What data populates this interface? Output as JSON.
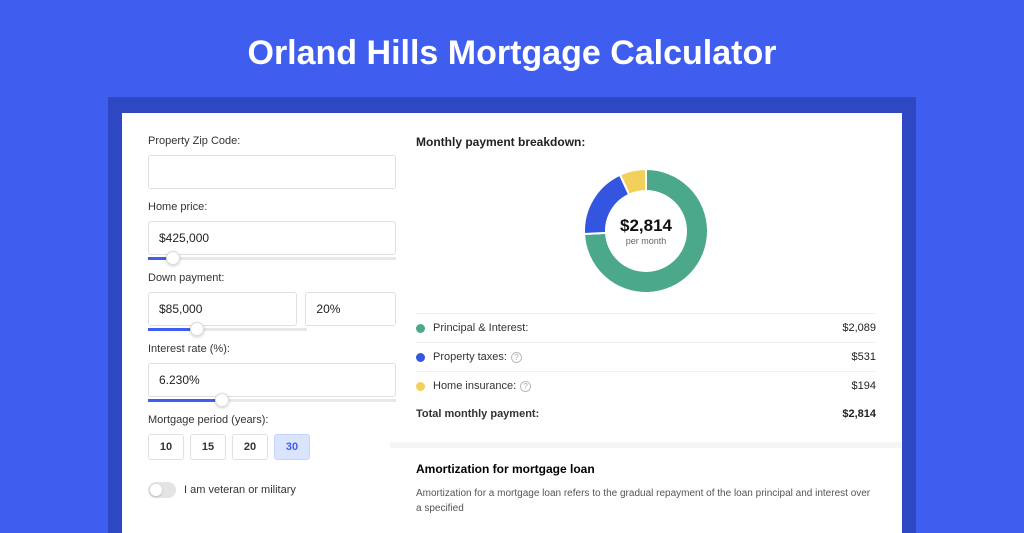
{
  "page": {
    "title": "Orland Hills Mortgage Calculator",
    "background_color": "#3f5ef0",
    "card_shadow_color": "#2e47c2"
  },
  "form": {
    "zip": {
      "label": "Property Zip Code:",
      "value": ""
    },
    "home_price": {
      "label": "Home price:",
      "value": "$425,000",
      "slider_percent": 10
    },
    "down_payment": {
      "label": "Down payment:",
      "amount": "$85,000",
      "percent": "20%",
      "slider_percent": 20
    },
    "interest_rate": {
      "label": "Interest rate (%):",
      "value": "6.230%",
      "slider_percent": 30
    },
    "period": {
      "label": "Mortgage period (years):",
      "options": [
        "10",
        "15",
        "20",
        "30"
      ],
      "selected_index": 3
    },
    "veteran": {
      "label": "I am veteran or military",
      "checked": false
    }
  },
  "breakdown": {
    "title": "Monthly payment breakdown:",
    "donut": {
      "amount": "$2,814",
      "sub": "per month",
      "colors": {
        "principal": "#4ba88a",
        "taxes": "#3355e0",
        "insurance": "#f3cf5b"
      },
      "segments": [
        {
          "key": "principal",
          "value": 2089
        },
        {
          "key": "taxes",
          "value": 531
        },
        {
          "key": "insurance",
          "value": 194
        }
      ]
    },
    "rows": [
      {
        "swatch": "#4ba88a",
        "label": "Principal & Interest:",
        "value": "$2,089",
        "info": false
      },
      {
        "swatch": "#3355e0",
        "label": "Property taxes:",
        "value": "$531",
        "info": true
      },
      {
        "swatch": "#f3cf5b",
        "label": "Home insurance:",
        "value": "$194",
        "info": true
      }
    ],
    "total": {
      "label": "Total monthly payment:",
      "value": "$2,814"
    }
  },
  "amortization": {
    "title": "Amortization for mortgage loan",
    "text": "Amortization for a mortgage loan refers to the gradual repayment of the loan principal and interest over a specified"
  }
}
